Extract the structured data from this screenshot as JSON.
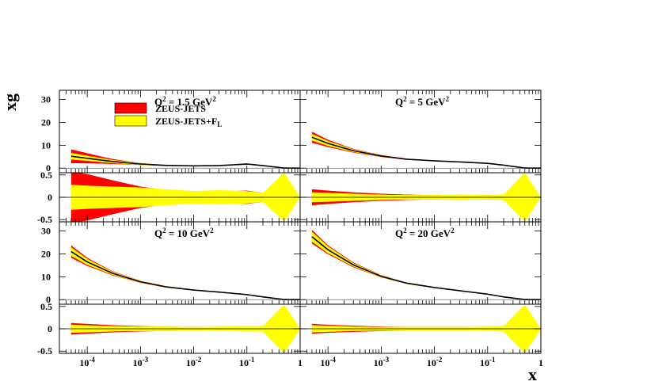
{
  "chart_data": {
    "type": "area",
    "ylabel": "xg",
    "xlabel": "x",
    "x_scale": "log",
    "xlim": [
      3e-05,
      1
    ],
    "x_tick_labels": [
      "10^-4",
      "10^-3",
      "10^-2",
      "10^-1",
      "1"
    ],
    "ylim_main": [
      -2,
      34
    ],
    "ylim_ratio": [
      -0.55,
      0.55
    ],
    "main_tick_labels": [
      "30",
      "20",
      "10",
      "0"
    ],
    "ratio_tick_labels": [
      "0.5",
      "0",
      "-0.5"
    ],
    "legend": {
      "placement": "top-left of first panel",
      "entries": [
        {
          "label": "ZEUS-JETS",
          "color": "#ff0000"
        },
        {
          "label": "ZEUS-JETS+F",
          "sub": "L",
          "color": "#ffff00"
        }
      ]
    },
    "panels": [
      {
        "q2_label": "Q",
        "q2_sup": "2",
        "q2_value": " = 1.5 GeV",
        "q2_unit_sup": "2",
        "x": [
          5e-05,
          0.0001,
          0.0003,
          0.001,
          0.003,
          0.01,
          0.03,
          0.1,
          0.2,
          0.5,
          1
        ],
        "central": [
          5.2,
          4.3,
          2.9,
          1.8,
          1.2,
          1.0,
          1.1,
          1.8,
          1.1,
          0.05,
          0
        ],
        "red_frac": [
          0.58,
          0.52,
          0.38,
          0.24,
          0.16,
          0.13,
          0.13,
          0.15,
          0.1,
          0.02,
          0
        ],
        "yellow_frac": [
          0.28,
          0.26,
          0.24,
          0.22,
          0.18,
          0.14,
          0.16,
          0.14,
          0.1,
          0.55,
          0
        ]
      },
      {
        "q2_label": "Q",
        "q2_sup": "2",
        "q2_value": " = 5 GeV",
        "q2_unit_sup": "2",
        "x": [
          5e-05,
          0.0001,
          0.0003,
          0.001,
          0.003,
          0.01,
          0.03,
          0.1,
          0.2,
          0.5,
          1
        ],
        "central": [
          13.5,
          10.8,
          7.6,
          5.3,
          3.9,
          3.2,
          2.7,
          2.1,
          1.3,
          0.05,
          0
        ],
        "red_frac": [
          0.18,
          0.15,
          0.11,
          0.08,
          0.06,
          0.05,
          0.05,
          0.05,
          0.05,
          0.02,
          0
        ],
        "yellow_frac": [
          0.11,
          0.1,
          0.08,
          0.06,
          0.05,
          0.05,
          0.06,
          0.05,
          0.06,
          0.55,
          0
        ]
      },
      {
        "q2_label": "Q",
        "q2_sup": "2",
        "q2_value": " = 10 GeV",
        "q2_unit_sup": "2",
        "x": [
          5e-05,
          0.0001,
          0.0003,
          0.001,
          0.003,
          0.01,
          0.03,
          0.1,
          0.2,
          0.5,
          1
        ],
        "central": [
          21.0,
          16.5,
          11.5,
          7.8,
          5.6,
          4.2,
          3.3,
          2.2,
          1.2,
          0.05,
          0
        ],
        "red_frac": [
          0.13,
          0.11,
          0.08,
          0.06,
          0.05,
          0.04,
          0.04,
          0.04,
          0.04,
          0.02,
          0
        ],
        "yellow_frac": [
          0.09,
          0.08,
          0.06,
          0.05,
          0.05,
          0.04,
          0.05,
          0.06,
          0.06,
          0.55,
          0
        ]
      },
      {
        "q2_label": "Q",
        "q2_sup": "2",
        "q2_value": " = 20 GeV",
        "q2_unit_sup": "2",
        "x": [
          5e-05,
          0.0001,
          0.0003,
          0.001,
          0.003,
          0.01,
          0.03,
          0.1,
          0.2,
          0.5,
          1
        ],
        "central": [
          27.5,
          21.8,
          15.2,
          10.2,
          7.2,
          5.3,
          3.9,
          2.4,
          1.2,
          0.05,
          0
        ],
        "red_frac": [
          0.11,
          0.09,
          0.07,
          0.05,
          0.04,
          0.04,
          0.04,
          0.04,
          0.04,
          0.02,
          0
        ],
        "yellow_frac": [
          0.08,
          0.07,
          0.05,
          0.04,
          0.04,
          0.04,
          0.04,
          0.05,
          0.06,
          0.55,
          0
        ]
      }
    ]
  }
}
